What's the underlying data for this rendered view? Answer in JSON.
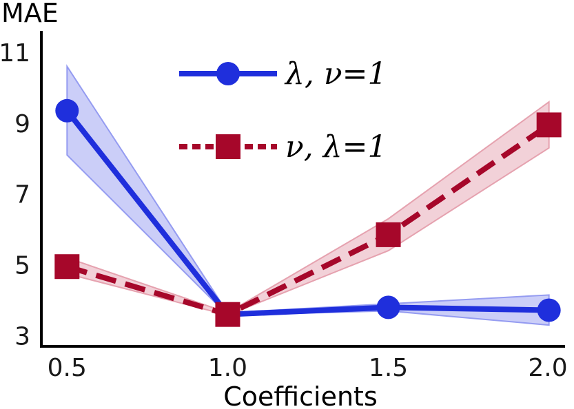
{
  "chart_data": {
    "type": "line",
    "title": "",
    "xlabel": "Coefficients",
    "ylabel": "MAE",
    "x": [
      0.5,
      1.0,
      1.5,
      2.0
    ],
    "x_tick_labels": [
      "0.5",
      "1.0",
      "1.5",
      "2.0"
    ],
    "y_ticks": [
      3,
      5,
      7,
      9,
      11
    ],
    "y_tick_labels": [
      "3",
      "5",
      "7",
      "9",
      "11"
    ],
    "xlim": [
      0.42,
      2.05
    ],
    "ylim": [
      2.7,
      11.6
    ],
    "grid": false,
    "legend_position": "top-center",
    "series": [
      {
        "name": "λ, ν=1",
        "color": "#1f2fdc",
        "band_color": "#8c93ef",
        "line_style": "solid",
        "marker": "circle",
        "values": [
          9.35,
          3.6,
          3.8,
          3.72
        ],
        "lower": [
          8.1,
          3.58,
          3.7,
          3.3
        ],
        "upper": [
          10.6,
          3.65,
          3.9,
          4.15
        ]
      },
      {
        "name": "ν, λ=1",
        "color": "#a6072a",
        "band_color": "#e39aa8",
        "line_style": "dashed",
        "marker": "square",
        "values": [
          4.95,
          3.6,
          5.85,
          8.95
        ],
        "lower": [
          4.75,
          3.58,
          5.4,
          8.3
        ],
        "upper": [
          5.2,
          3.65,
          6.3,
          9.6
        ]
      }
    ]
  }
}
